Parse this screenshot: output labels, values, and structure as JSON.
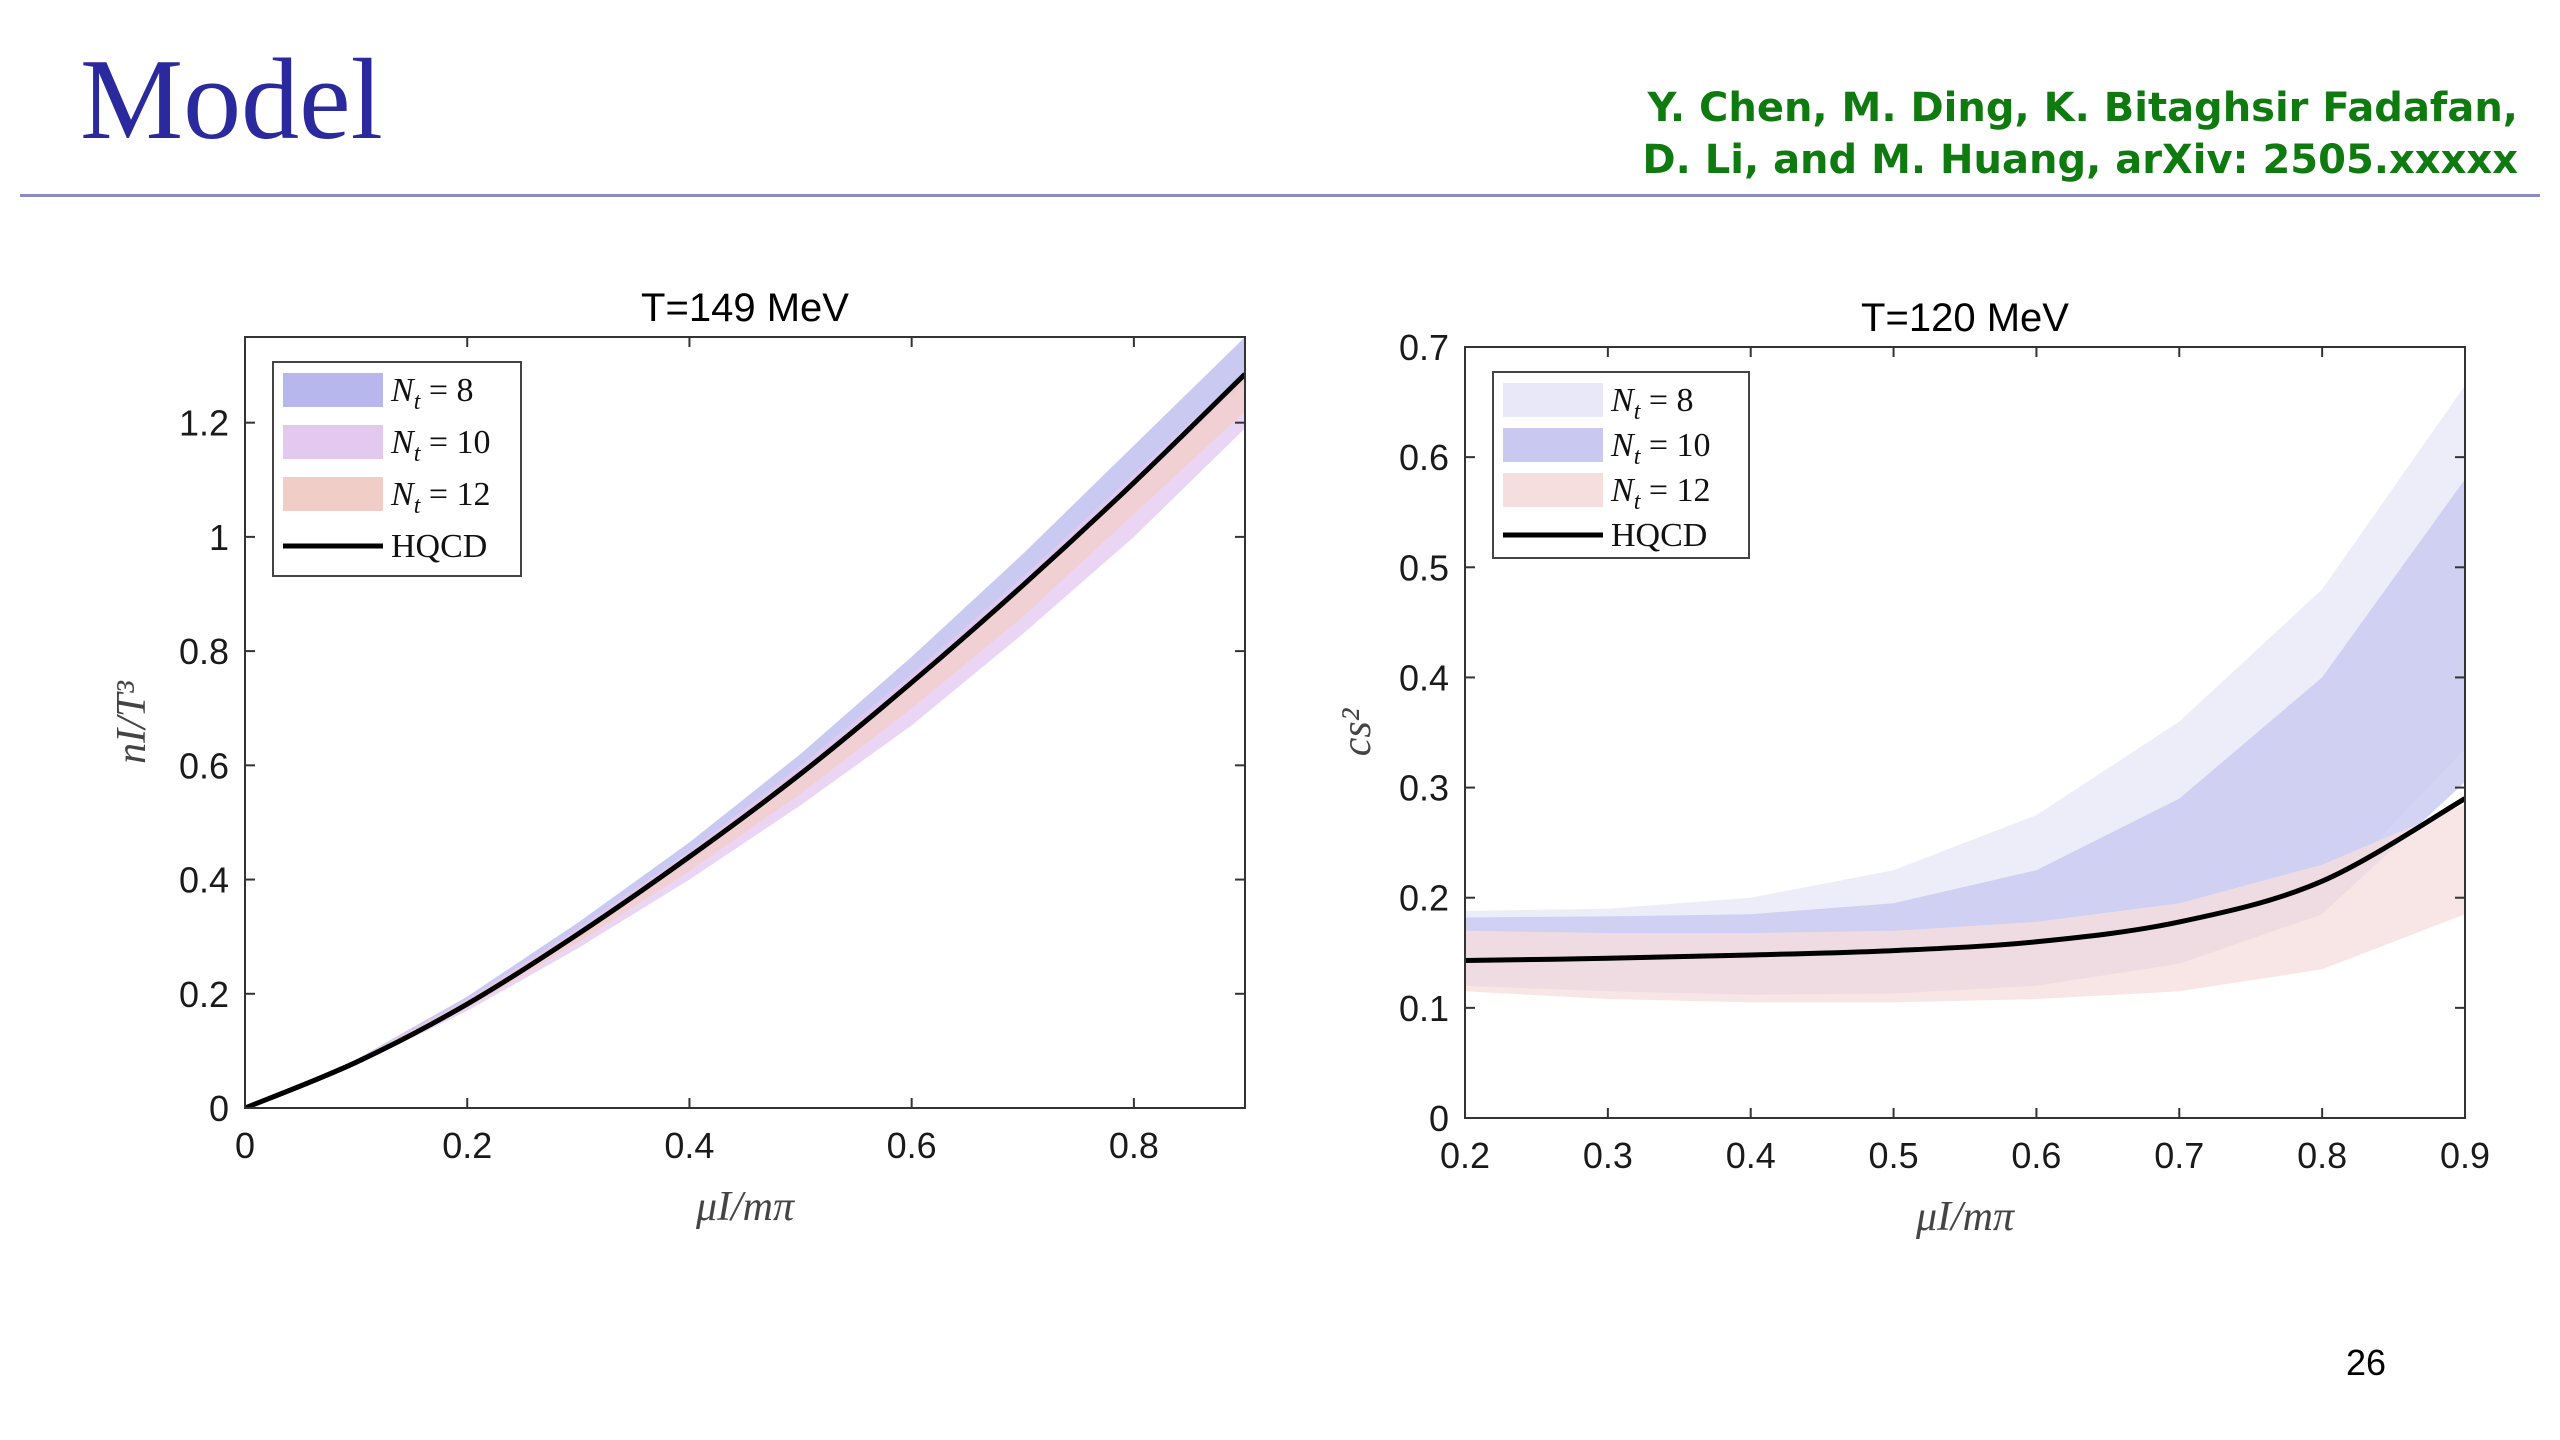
{
  "slide": {
    "title": "Model",
    "citation_line1": "Y. Chen, M. Ding, K. Bitaghsir Fadafan,",
    "citation_line2": "D. Li, and M. Huang, arXiv: 2505.xxxxx",
    "page_number": "26",
    "title_color": "#2a2a9e",
    "citation_color": "#0f7a0f"
  },
  "chart_data": [
    {
      "type": "line",
      "title": "T=149 MeV",
      "xlabel": "μI/mπ",
      "ylabel": "nI/T³",
      "xlim": [
        0,
        0.9
      ],
      "ylim": [
        0,
        1.35
      ],
      "xticks": [
        0,
        0.2,
        0.4,
        0.6,
        0.8
      ],
      "xtick_labels": [
        "0",
        "0.2",
        "0.4",
        "0.6",
        "0.8"
      ],
      "yticks": [
        0,
        0.2,
        0.4,
        0.6,
        0.8,
        1,
        1.2
      ],
      "ytick_labels": [
        "0",
        "0.2",
        "0.4",
        "0.6",
        "0.8",
        "1",
        "1.2"
      ],
      "grid": false,
      "legend_position": "top-left",
      "bands": [
        {
          "name": "Nt = 8",
          "legend_label": "N_t = 8",
          "color": "#b7b7ee",
          "x": [
            0,
            0.1,
            0.2,
            0.3,
            0.4,
            0.5,
            0.6,
            0.7,
            0.8,
            0.9
          ],
          "low": [
            0,
            0.08,
            0.18,
            0.3,
            0.43,
            0.58,
            0.74,
            0.91,
            1.09,
            1.27
          ],
          "high": [
            0,
            0.085,
            0.195,
            0.325,
            0.465,
            0.62,
            0.79,
            0.97,
            1.16,
            1.35
          ]
        },
        {
          "name": "Nt = 10",
          "legend_label": "N_t = 10",
          "color": "#e3c8f0",
          "x": [
            0,
            0.1,
            0.2,
            0.3,
            0.4,
            0.5,
            0.6,
            0.7,
            0.8,
            0.9
          ],
          "low": [
            0,
            0.075,
            0.17,
            0.28,
            0.4,
            0.53,
            0.67,
            0.83,
            1.0,
            1.19
          ],
          "high": [
            0,
            0.085,
            0.19,
            0.315,
            0.45,
            0.6,
            0.76,
            0.93,
            1.11,
            1.29
          ]
        },
        {
          "name": "Nt = 12",
          "legend_label": "N_t = 12",
          "color": "#f1cdc8",
          "x": [
            0,
            0.1,
            0.2,
            0.3,
            0.4,
            0.5,
            0.6,
            0.7,
            0.8,
            0.9
          ],
          "low": [
            0,
            0.078,
            0.175,
            0.29,
            0.415,
            0.55,
            0.7,
            0.86,
            1.04,
            1.22
          ],
          "high": [
            0,
            0.083,
            0.188,
            0.31,
            0.445,
            0.59,
            0.75,
            0.92,
            1.1,
            1.28
          ]
        }
      ],
      "series": [
        {
          "name": "HQCD",
          "color": "#000000",
          "x": [
            0,
            0.1,
            0.2,
            0.3,
            0.4,
            0.5,
            0.6,
            0.7,
            0.8,
            0.9
          ],
          "y": [
            0,
            0.08,
            0.182,
            0.305,
            0.44,
            0.585,
            0.745,
            0.915,
            1.095,
            1.285
          ]
        }
      ]
    },
    {
      "type": "line",
      "title": "T=120 MeV",
      "xlabel": "μI/mπ",
      "ylabel": "cs²",
      "xlim": [
        0.2,
        0.9
      ],
      "ylim": [
        0,
        0.7
      ],
      "xticks": [
        0.2,
        0.3,
        0.4,
        0.5,
        0.6,
        0.7,
        0.8,
        0.9
      ],
      "xtick_labels": [
        "0.2",
        "0.3",
        "0.4",
        "0.5",
        "0.6",
        "0.7",
        "0.8",
        "0.9"
      ],
      "yticks": [
        0,
        0.1,
        0.2,
        0.3,
        0.4,
        0.5,
        0.6,
        0.7
      ],
      "ytick_labels": [
        "0",
        "0.1",
        "0.2",
        "0.3",
        "0.4",
        "0.5",
        "0.6",
        "0.7"
      ],
      "grid": false,
      "legend_position": "top-left",
      "bands": [
        {
          "name": "Nt = 8",
          "legend_label": "N_t = 8",
          "color": "#e8e8f8",
          "x": [
            0.2,
            0.3,
            0.4,
            0.5,
            0.6,
            0.7,
            0.8,
            0.9
          ],
          "low": [
            0.135,
            0.128,
            0.125,
            0.125,
            0.13,
            0.15,
            0.2,
            0.335
          ],
          "high": [
            0.188,
            0.19,
            0.2,
            0.225,
            0.275,
            0.36,
            0.48,
            0.665
          ]
        },
        {
          "name": "Nt = 10",
          "legend_label": "N_t = 10",
          "color": "#c8c8f0",
          "x": [
            0.2,
            0.3,
            0.4,
            0.5,
            0.6,
            0.7,
            0.8,
            0.9
          ],
          "low": [
            0.12,
            0.115,
            0.112,
            0.113,
            0.12,
            0.14,
            0.185,
            0.305
          ],
          "high": [
            0.182,
            0.183,
            0.185,
            0.195,
            0.225,
            0.29,
            0.4,
            0.58
          ]
        },
        {
          "name": "Nt = 12",
          "legend_label": "N_t = 12",
          "color": "#f6dede",
          "x": [
            0.2,
            0.3,
            0.4,
            0.5,
            0.6,
            0.7,
            0.8,
            0.9
          ],
          "low": [
            0.115,
            0.108,
            0.105,
            0.105,
            0.108,
            0.115,
            0.135,
            0.185
          ],
          "high": [
            0.17,
            0.168,
            0.168,
            0.17,
            0.178,
            0.195,
            0.23,
            0.285
          ]
        }
      ],
      "series": [
        {
          "name": "HQCD",
          "color": "#000000",
          "x": [
            0.2,
            0.3,
            0.4,
            0.5,
            0.6,
            0.7,
            0.8,
            0.9
          ],
          "y": [
            0.143,
            0.145,
            0.148,
            0.152,
            0.16,
            0.178,
            0.215,
            0.29
          ]
        }
      ]
    }
  ]
}
